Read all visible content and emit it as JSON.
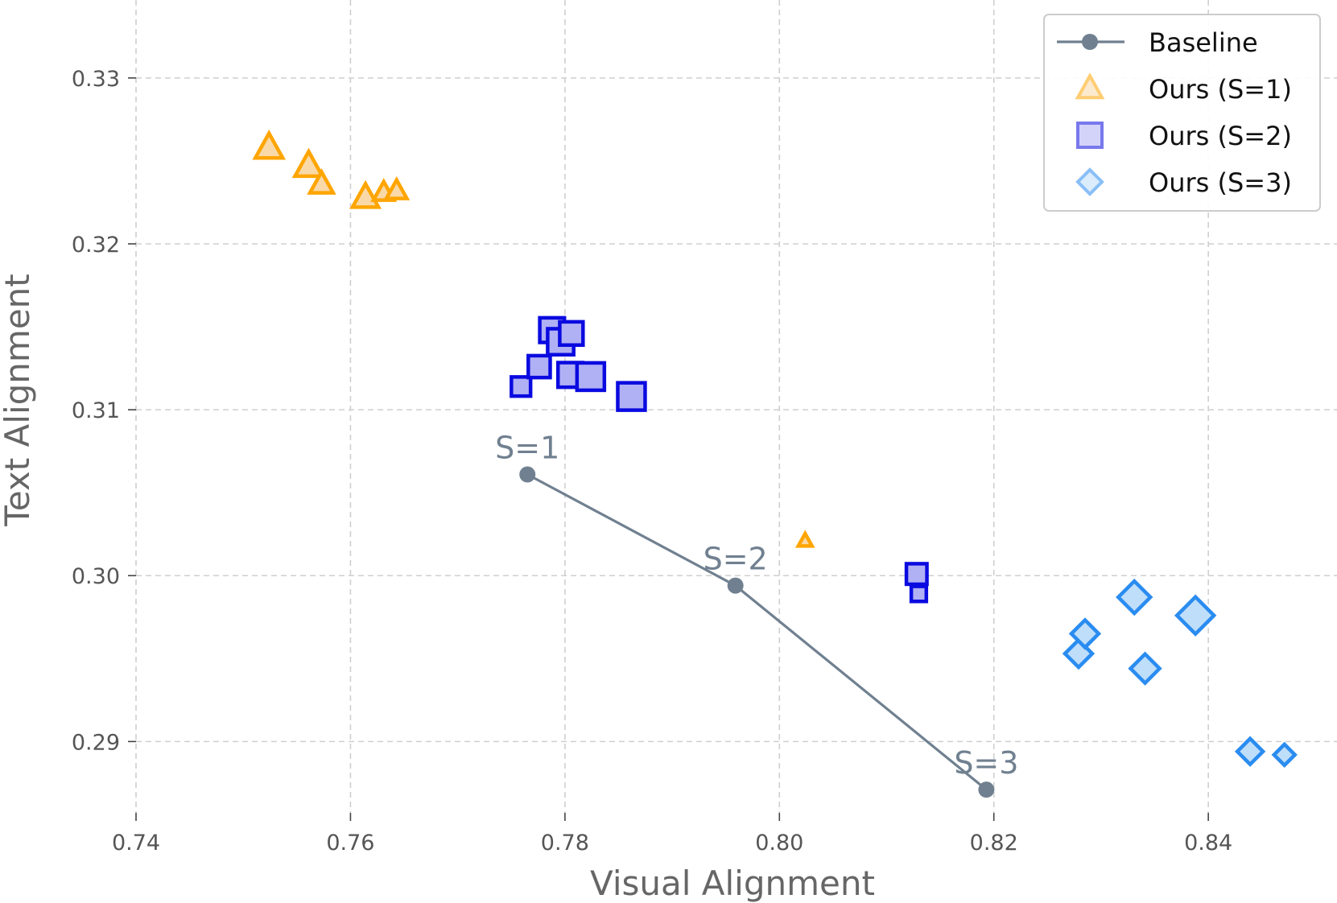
{
  "chart_data": {
    "type": "scatter",
    "xlabel": "Visual Alignment",
    "ylabel": "Text Alignment",
    "xlim": [
      0.74,
      0.852
    ],
    "ylim": [
      0.2857,
      0.3347
    ],
    "xticks": [
      0.74,
      0.76,
      0.78,
      0.8,
      0.82,
      0.84
    ],
    "xtick_labels": [
      "0.74",
      "0.76",
      "0.78",
      "0.80",
      "0.82",
      "0.84"
    ],
    "yticks": [
      0.29,
      0.3,
      0.31,
      0.32,
      0.33
    ],
    "ytick_labels": [
      "0.29",
      "0.30",
      "0.31",
      "0.32",
      "0.33"
    ],
    "grid": true,
    "legend_position": "top-right",
    "baseline": {
      "name": "Baseline",
      "color": "#708090",
      "points": [
        {
          "x": 0.7765,
          "y": 0.3061,
          "label": "S=1"
        },
        {
          "x": 0.7959,
          "y": 0.2994,
          "label": "S=2"
        },
        {
          "x": 0.8193,
          "y": 0.2871,
          "label": "S=3"
        }
      ]
    },
    "series": [
      {
        "name": "Ours (S=1)",
        "marker": "triangle",
        "edge_color": "#FFA500",
        "fill_color": "#FAD9A8",
        "points": [
          {
            "x": 0.7524,
            "y": 0.3258,
            "size": 1.0
          },
          {
            "x": 0.7561,
            "y": 0.3247,
            "size": 1.0
          },
          {
            "x": 0.7573,
            "y": 0.3236,
            "size": 0.85
          },
          {
            "x": 0.7614,
            "y": 0.3228,
            "size": 0.95
          },
          {
            "x": 0.7631,
            "y": 0.3231,
            "size": 0.75
          },
          {
            "x": 0.7643,
            "y": 0.3232,
            "size": 0.75
          },
          {
            "x": 0.8024,
            "y": 0.3021,
            "size": 0.5
          }
        ]
      },
      {
        "name": "Ours (S=2)",
        "marker": "square",
        "edge_color": "#0A0AE0",
        "fill_color": "#B0B0F5",
        "points": [
          {
            "x": 0.7759,
            "y": 0.3114,
            "size": 0.7
          },
          {
            "x": 0.7776,
            "y": 0.3126,
            "size": 0.8
          },
          {
            "x": 0.7788,
            "y": 0.3148,
            "size": 0.9
          },
          {
            "x": 0.7796,
            "y": 0.3141,
            "size": 0.95
          },
          {
            "x": 0.7806,
            "y": 0.3146,
            "size": 0.85
          },
          {
            "x": 0.7805,
            "y": 0.3121,
            "size": 0.9
          },
          {
            "x": 0.7824,
            "y": 0.312,
            "size": 1.0
          },
          {
            "x": 0.7862,
            "y": 0.3108,
            "size": 1.0
          },
          {
            "x": 0.8128,
            "y": 0.3001,
            "size": 0.75
          },
          {
            "x": 0.813,
            "y": 0.2989,
            "size": 0.55
          }
        ]
      },
      {
        "name": "Ours (S=3)",
        "marker": "diamond",
        "edge_color": "#2A8CF0",
        "fill_color": "#BFDEFA",
        "points": [
          {
            "x": 0.8279,
            "y": 0.2953,
            "size": 0.85
          },
          {
            "x": 0.8285,
            "y": 0.2965,
            "size": 0.85
          },
          {
            "x": 0.8331,
            "y": 0.2987,
            "size": 1.0
          },
          {
            "x": 0.8341,
            "y": 0.2944,
            "size": 0.9
          },
          {
            "x": 0.8388,
            "y": 0.2976,
            "size": 1.15
          },
          {
            "x": 0.8439,
            "y": 0.2894,
            "size": 0.8
          },
          {
            "x": 0.8471,
            "y": 0.2892,
            "size": 0.65
          }
        ]
      }
    ]
  }
}
